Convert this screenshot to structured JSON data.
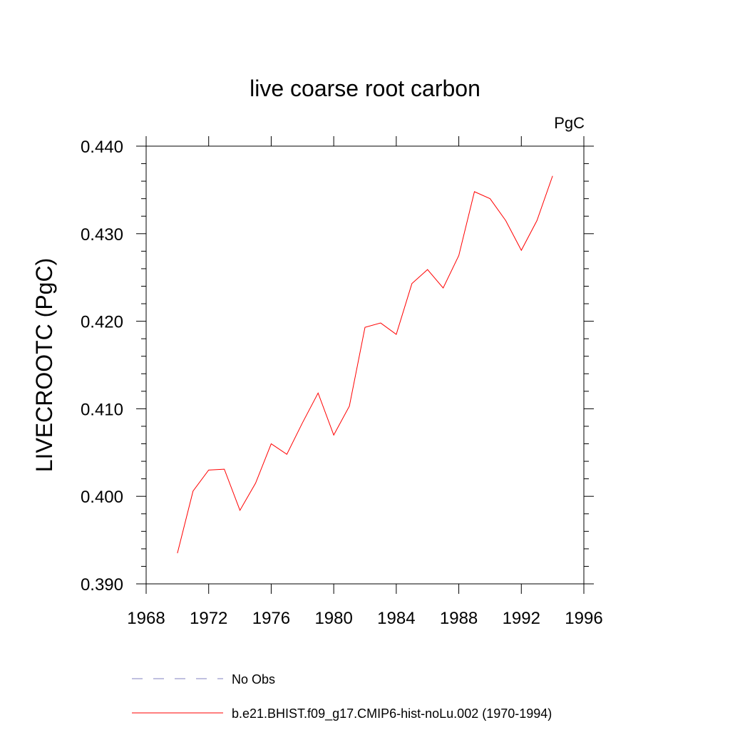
{
  "chart_data": {
    "type": "line",
    "title": "live coarse root carbon",
    "units_label": "PgC",
    "xlabel": "",
    "ylabel": "LIVECROOTC  (PgC)",
    "xlim": [
      1968,
      1996
    ],
    "ylim": [
      0.39,
      0.44
    ],
    "x_ticks": [
      1968,
      1972,
      1976,
      1980,
      1984,
      1988,
      1992,
      1996
    ],
    "x_tick_labels": [
      "1968",
      "1972",
      "1976",
      "1980",
      "1984",
      "1988",
      "1992",
      "1996"
    ],
    "y_ticks": [
      0.39,
      0.4,
      0.41,
      0.42,
      0.43,
      0.44
    ],
    "y_tick_labels": [
      "0.390",
      "0.400",
      "0.410",
      "0.420",
      "0.430",
      "0.440"
    ],
    "grid": false,
    "legend_position": "bottom",
    "series": [
      {
        "name": "b.e21.BHIST.f09_g17.CMIP6-hist-noLu.002 (1970-1994)",
        "color": "#ff0000",
        "style": "solid",
        "x": [
          1970,
          1971,
          1972,
          1973,
          1974,
          1975,
          1976,
          1977,
          1978,
          1979,
          1980,
          1981,
          1982,
          1983,
          1984,
          1985,
          1986,
          1987,
          1988,
          1989,
          1990,
          1991,
          1992,
          1993,
          1994
        ],
        "y": [
          0.3935,
          0.4006,
          0.403,
          0.4031,
          0.3984,
          0.4015,
          0.406,
          0.4048,
          0.4084,
          0.4118,
          0.407,
          0.4103,
          0.4193,
          0.4198,
          0.4185,
          0.4243,
          0.4259,
          0.4238,
          0.4275,
          0.4348,
          0.434,
          0.4315,
          0.4281,
          0.4315,
          0.4366
        ]
      }
    ],
    "legend": [
      {
        "label": "No Obs",
        "color": "#8080c0",
        "style": "dashed"
      },
      {
        "label": "b.e21.BHIST.f09_g17.CMIP6-hist-noLu.002 (1970-1994)",
        "color": "#ff0000",
        "style": "solid"
      }
    ]
  }
}
